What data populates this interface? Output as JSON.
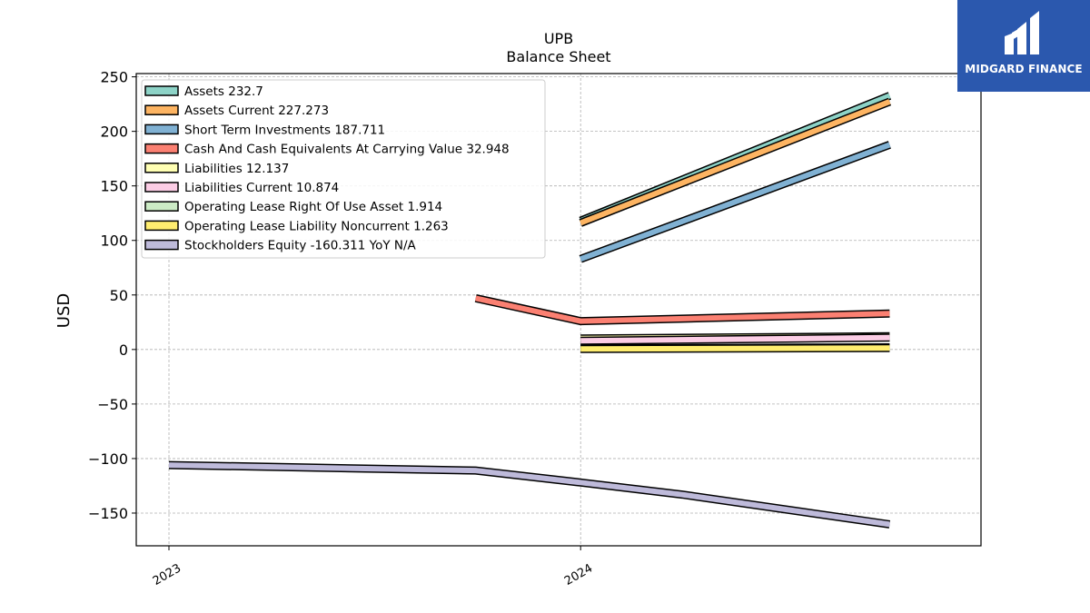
{
  "brand": {
    "name": "MIDGARD FINANCE",
    "bg_color": "#2b58ae"
  },
  "chart_data": {
    "type": "line",
    "title": "UPB",
    "subtitle": "Balance  Sheet",
    "ylabel": "USD",
    "xlabel": "",
    "ylim": [
      -180,
      253
    ],
    "yticks": [
      250,
      200,
      150,
      100,
      50,
      0,
      -50,
      -100,
      -150
    ],
    "ytick_labels": [
      "250",
      "200",
      "150",
      "100",
      "50",
      "0",
      "−50",
      "−100",
      "−150"
    ],
    "xlim": [
      "2022-12-03",
      "2024-12-21"
    ],
    "xticks": [
      "2023-01-01",
      "2024-01-01"
    ],
    "xtick_labels": [
      "2023",
      "2024"
    ],
    "grid": true,
    "legend_position": "top-left",
    "series": [
      {
        "name": "Assets",
        "legend_value": "232.7",
        "color": "#8dd3c7",
        "points": [
          {
            "x": "2024-01-01",
            "y": 118
          },
          {
            "x": "2024-10-01",
            "y": 232.7
          }
        ]
      },
      {
        "name": "Assets Current",
        "legend_value": "227.273",
        "color": "#fdb462",
        "points": [
          {
            "x": "2024-01-01",
            "y": 116
          },
          {
            "x": "2024-10-01",
            "y": 227.273
          }
        ]
      },
      {
        "name": "Short Term Investments",
        "legend_value": "187.711",
        "color": "#80b1d3",
        "points": [
          {
            "x": "2024-01-01",
            "y": 83
          },
          {
            "x": "2024-10-01",
            "y": 187.711
          }
        ]
      },
      {
        "name": "Cash And Cash Equivalents At Carrying Value",
        "legend_value": "32.948",
        "color": "#fb8072",
        "points": [
          {
            "x": "2023-09-30",
            "y": 47
          },
          {
            "x": "2024-01-01",
            "y": 26
          },
          {
            "x": "2024-10-01",
            "y": 32.948
          }
        ]
      },
      {
        "name": "Liabilities",
        "legend_value": "12.137",
        "color": "#ffffb3",
        "points": [
          {
            "x": "2024-01-01",
            "y": 10
          },
          {
            "x": "2024-10-01",
            "y": 12.137
          }
        ]
      },
      {
        "name": "Liabilities Current",
        "legend_value": "10.874",
        "color": "#fccde5",
        "points": [
          {
            "x": "2024-01-01",
            "y": 8
          },
          {
            "x": "2024-10-01",
            "y": 10.874
          }
        ]
      },
      {
        "name": "Operating Lease Right Of Use Asset",
        "legend_value": "1.914",
        "color": "#ccebc5",
        "points": [
          {
            "x": "2024-01-01",
            "y": 1
          },
          {
            "x": "2024-10-01",
            "y": 1.914
          }
        ]
      },
      {
        "name": "Operating Lease Liability Noncurrent",
        "legend_value": "1.263",
        "color": "#ffed6f",
        "points": [
          {
            "x": "2024-01-01",
            "y": 0.5
          },
          {
            "x": "2024-10-01",
            "y": 1.263
          }
        ]
      },
      {
        "name": "Stockholders Equity",
        "legend_value": "-160.311 YoY N/A",
        "color": "#bebada",
        "points": [
          {
            "x": "2023-01-01",
            "y": -106
          },
          {
            "x": "2023-09-30",
            "y": -111
          },
          {
            "x": "2024-01-01",
            "y": -122
          },
          {
            "x": "2024-03-31",
            "y": -133
          },
          {
            "x": "2024-10-01",
            "y": -160.311
          }
        ]
      }
    ]
  }
}
